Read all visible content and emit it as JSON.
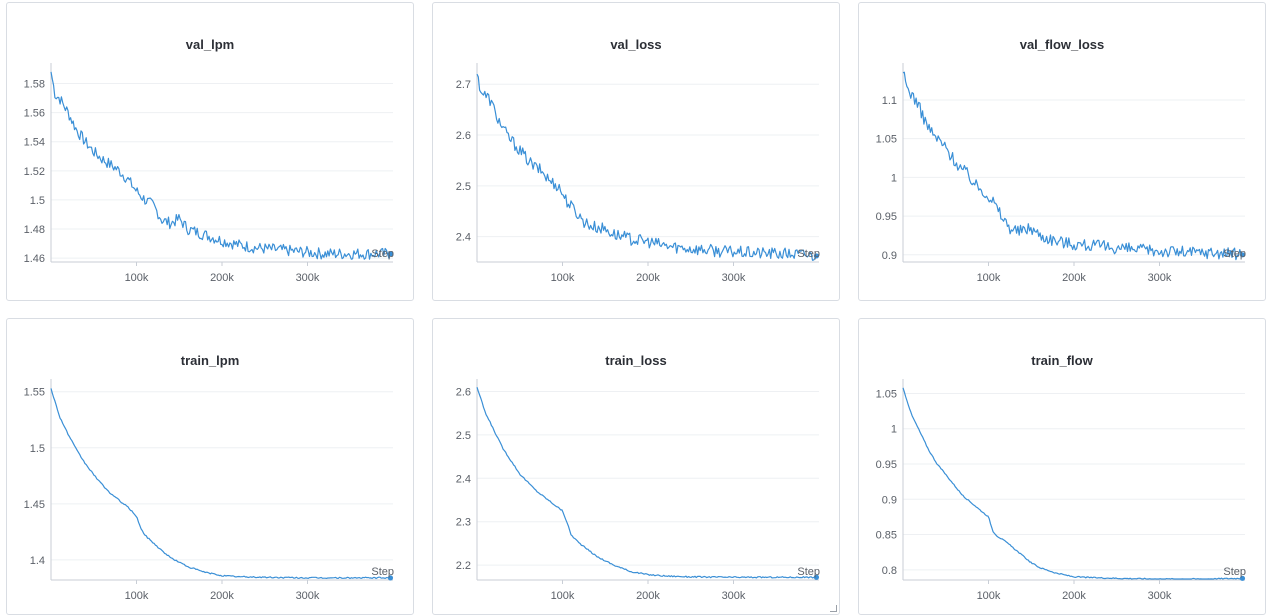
{
  "step_label": "Step",
  "colors": {
    "line": "#3a8fd6",
    "grid": "#eef0f3",
    "axis": "#c9ced6"
  },
  "chart_data": [
    {
      "type": "line",
      "title": "val_lpm",
      "xlabel": "Step",
      "x_ticks": [
        "100k",
        "200k",
        "300k"
      ],
      "y_ticks": [
        "1.46",
        "1.48",
        "1.5",
        "1.52",
        "1.54",
        "1.56",
        "1.58"
      ],
      "xlim": [
        0,
        400000
      ],
      "ylim": [
        1.458,
        1.59
      ],
      "grid": true,
      "noise": 0.004,
      "points": [
        [
          0,
          1.588
        ],
        [
          5000,
          1.572
        ],
        [
          10000,
          1.57
        ],
        [
          20000,
          1.56
        ],
        [
          30000,
          1.548
        ],
        [
          40000,
          1.54
        ],
        [
          50000,
          1.533
        ],
        [
          60000,
          1.528
        ],
        [
          70000,
          1.524
        ],
        [
          80000,
          1.52
        ],
        [
          90000,
          1.514
        ],
        [
          100000,
          1.506
        ],
        [
          110000,
          1.5
        ],
        [
          120000,
          1.496
        ],
        [
          130000,
          1.486
        ],
        [
          140000,
          1.484
        ],
        [
          150000,
          1.487
        ],
        [
          160000,
          1.48
        ],
        [
          170000,
          1.478
        ],
        [
          180000,
          1.476
        ],
        [
          190000,
          1.474
        ],
        [
          200000,
          1.472
        ],
        [
          220000,
          1.469
        ],
        [
          240000,
          1.467
        ],
        [
          260000,
          1.466
        ],
        [
          280000,
          1.465
        ],
        [
          300000,
          1.464
        ],
        [
          320000,
          1.463
        ],
        [
          340000,
          1.463
        ],
        [
          360000,
          1.463
        ],
        [
          380000,
          1.463
        ],
        [
          397000,
          1.463
        ]
      ]
    },
    {
      "type": "line",
      "title": "val_loss",
      "xlabel": "Step",
      "x_ticks": [
        "100k",
        "200k",
        "300k"
      ],
      "y_ticks": [
        "2.4",
        "2.5",
        "2.6",
        "2.7"
      ],
      "xlim": [
        0,
        400000
      ],
      "ylim": [
        2.352,
        2.73
      ],
      "grid": true,
      "noise": 0.012,
      "points": [
        [
          0,
          2.72
        ],
        [
          5000,
          2.685
        ],
        [
          15000,
          2.67
        ],
        [
          25000,
          2.63
        ],
        [
          35000,
          2.6
        ],
        [
          45000,
          2.58
        ],
        [
          55000,
          2.56
        ],
        [
          65000,
          2.54
        ],
        [
          75000,
          2.53
        ],
        [
          85000,
          2.51
        ],
        [
          95000,
          2.5
        ],
        [
          105000,
          2.47
        ],
        [
          115000,
          2.45
        ],
        [
          125000,
          2.43
        ],
        [
          135000,
          2.42
        ],
        [
          150000,
          2.415
        ],
        [
          160000,
          2.405
        ],
        [
          180000,
          2.395
        ],
        [
          200000,
          2.39
        ],
        [
          220000,
          2.382
        ],
        [
          240000,
          2.378
        ],
        [
          260000,
          2.375
        ],
        [
          280000,
          2.372
        ],
        [
          300000,
          2.37
        ],
        [
          320000,
          2.368
        ],
        [
          340000,
          2.367
        ],
        [
          360000,
          2.366
        ],
        [
          380000,
          2.365
        ],
        [
          397000,
          2.362
        ]
      ]
    },
    {
      "type": "line",
      "title": "val_flow_loss",
      "xlabel": "Step",
      "x_ticks": [
        "100k",
        "200k",
        "300k"
      ],
      "y_ticks": [
        "0.9",
        "0.95",
        "1",
        "1.05",
        "1.1"
      ],
      "xlim": [
        0,
        400000
      ],
      "ylim": [
        0.892,
        1.14
      ],
      "grid": true,
      "noise": 0.008,
      "points": [
        [
          0,
          1.135
        ],
        [
          5000,
          1.115
        ],
        [
          15000,
          1.1
        ],
        [
          25000,
          1.075
        ],
        [
          35000,
          1.055
        ],
        [
          45000,
          1.045
        ],
        [
          55000,
          1.03
        ],
        [
          65000,
          1.015
        ],
        [
          75000,
          1.005
        ],
        [
          85000,
          0.99
        ],
        [
          95000,
          0.982
        ],
        [
          105000,
          0.97
        ],
        [
          115000,
          0.95
        ],
        [
          125000,
          0.935
        ],
        [
          135000,
          0.93
        ],
        [
          150000,
          0.935
        ],
        [
          160000,
          0.925
        ],
        [
          180000,
          0.918
        ],
        [
          200000,
          0.914
        ],
        [
          220000,
          0.912
        ],
        [
          240000,
          0.91
        ],
        [
          260000,
          0.908
        ],
        [
          280000,
          0.906
        ],
        [
          300000,
          0.905
        ],
        [
          320000,
          0.904
        ],
        [
          340000,
          0.903
        ],
        [
          360000,
          0.903
        ],
        [
          380000,
          0.902
        ],
        [
          397000,
          0.9
        ]
      ]
    },
    {
      "type": "line",
      "title": "train_lpm",
      "xlabel": "Step",
      "x_ticks": [
        "100k",
        "200k",
        "300k"
      ],
      "y_ticks": [
        "1.4",
        "1.45",
        "1.5",
        "1.55"
      ],
      "xlim": [
        0,
        400000
      ],
      "ylim": [
        1.383,
        1.556
      ],
      "grid": true,
      "noise": 0.0006,
      "points": [
        [
          0,
          1.553
        ],
        [
          10000,
          1.528
        ],
        [
          20000,
          1.512
        ],
        [
          30000,
          1.498
        ],
        [
          40000,
          1.486
        ],
        [
          50000,
          1.476
        ],
        [
          60000,
          1.467
        ],
        [
          70000,
          1.459
        ],
        [
          80000,
          1.453
        ],
        [
          90000,
          1.447
        ],
        [
          100000,
          1.439
        ],
        [
          105000,
          1.428
        ],
        [
          110000,
          1.422
        ],
        [
          120000,
          1.415
        ],
        [
          130000,
          1.408
        ],
        [
          140000,
          1.402
        ],
        [
          150000,
          1.398
        ],
        [
          160000,
          1.394
        ],
        [
          180000,
          1.389
        ],
        [
          200000,
          1.386
        ],
        [
          220000,
          1.385
        ],
        [
          250000,
          1.3845
        ],
        [
          300000,
          1.384
        ],
        [
          350000,
          1.384
        ],
        [
          397000,
          1.384
        ]
      ]
    },
    {
      "type": "line",
      "title": "train_loss",
      "xlabel": "Step",
      "x_ticks": [
        "100k",
        "200k",
        "300k"
      ],
      "y_ticks": [
        "2.2",
        "2.3",
        "2.4",
        "2.5",
        "2.6"
      ],
      "xlim": [
        0,
        400000
      ],
      "ylim": [
        2.168,
        2.615
      ],
      "grid": true,
      "noise": 0.0015,
      "points": [
        [
          0,
          2.61
        ],
        [
          10000,
          2.55
        ],
        [
          20000,
          2.51
        ],
        [
          30000,
          2.47
        ],
        [
          40000,
          2.44
        ],
        [
          50000,
          2.41
        ],
        [
          60000,
          2.39
        ],
        [
          70000,
          2.37
        ],
        [
          80000,
          2.355
        ],
        [
          90000,
          2.34
        ],
        [
          100000,
          2.325
        ],
        [
          105000,
          2.3
        ],
        [
          110000,
          2.27
        ],
        [
          120000,
          2.25
        ],
        [
          130000,
          2.235
        ],
        [
          140000,
          2.22
        ],
        [
          150000,
          2.21
        ],
        [
          160000,
          2.2
        ],
        [
          180000,
          2.185
        ],
        [
          200000,
          2.178
        ],
        [
          220000,
          2.175
        ],
        [
          250000,
          2.173
        ],
        [
          300000,
          2.172
        ],
        [
          350000,
          2.172
        ],
        [
          397000,
          2.172
        ]
      ]
    },
    {
      "type": "line",
      "title": "train_flow",
      "xlabel": "Step",
      "x_ticks": [
        "100k",
        "200k",
        "300k"
      ],
      "y_ticks": [
        "0.8",
        "0.85",
        "0.9",
        "0.95",
        "1",
        "1.05"
      ],
      "xlim": [
        0,
        400000
      ],
      "ylim": [
        0.787,
        1.062
      ],
      "grid": true,
      "noise": 0.0008,
      "points": [
        [
          0,
          1.058
        ],
        [
          10000,
          1.02
        ],
        [
          20000,
          0.995
        ],
        [
          30000,
          0.97
        ],
        [
          40000,
          0.95
        ],
        [
          50000,
          0.935
        ],
        [
          60000,
          0.92
        ],
        [
          70000,
          0.905
        ],
        [
          80000,
          0.895
        ],
        [
          90000,
          0.885
        ],
        [
          100000,
          0.875
        ],
        [
          105000,
          0.855
        ],
        [
          110000,
          0.848
        ],
        [
          120000,
          0.84
        ],
        [
          130000,
          0.83
        ],
        [
          140000,
          0.82
        ],
        [
          150000,
          0.81
        ],
        [
          160000,
          0.803
        ],
        [
          180000,
          0.795
        ],
        [
          200000,
          0.79
        ],
        [
          220000,
          0.789
        ],
        [
          250000,
          0.788
        ],
        [
          300000,
          0.787
        ],
        [
          350000,
          0.787
        ],
        [
          397000,
          0.788
        ]
      ]
    }
  ]
}
